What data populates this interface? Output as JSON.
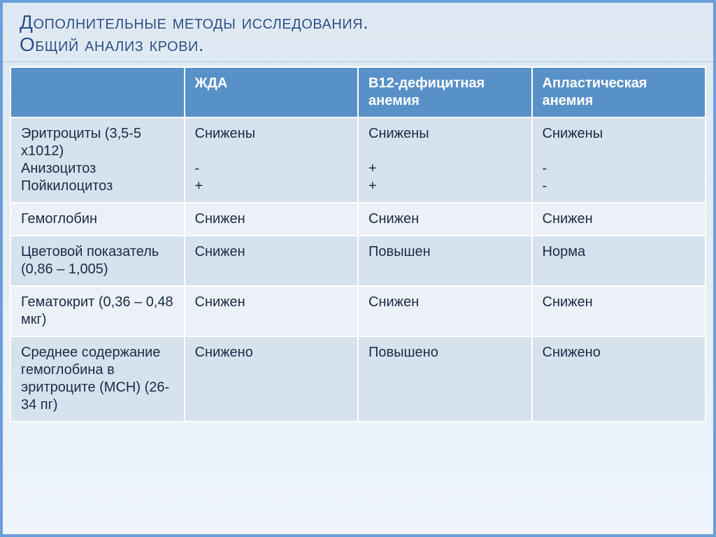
{
  "title_line1": "Дополнительные методы исследования.",
  "title_line2": "Общий анализ крови.",
  "colors": {
    "header_bg": "#5891c8",
    "header_fg": "#ffffff",
    "row_even_bg": "#d6e2ee",
    "row_odd_bg": "#ebf1f7",
    "border": "#ffffff",
    "slide_border": "#6a9ed8",
    "title_color": "#2b4d87",
    "body_text": "#1a2b44"
  },
  "font_sizes_pt": {
    "title": 21,
    "table": 15
  },
  "table": {
    "type": "table",
    "columns": [
      "",
      "ЖДА",
      "В12-дефицитная анемия",
      "Апластическая анемия"
    ],
    "col_widths_pct": [
      25,
      25,
      25,
      25
    ],
    "rows": [
      {
        "label": "Эритроциты (3,5-5 х1012)\n   Анизоцитоз\n   Пойкилоцитоз",
        "c1": "Снижены\n\n-\n+",
        "c2": "Снижены\n\n+\n+",
        "c3": "Снижены\n\n-\n-"
      },
      {
        "label": "Гемоглобин",
        "c1": "Снижен",
        "c2": "Снижен",
        "c3": "Снижен"
      },
      {
        "label": "Цветовой показатель\n(0,86 – 1,005)",
        "c1": "Снижен",
        "c2": "Повышен",
        "c3": "Норма"
      },
      {
        "label": "Гематокрит (0,36 – 0,48 мкг)",
        "c1": "Снижен",
        "c2": "Снижен",
        "c3": "Снижен"
      },
      {
        "label": "Среднее содержание гемоглобина в эритроците (МСН) (26-34 пг)",
        "c1": "Снижено",
        "c2": "Повышено",
        "c3": "Снижено"
      }
    ]
  }
}
